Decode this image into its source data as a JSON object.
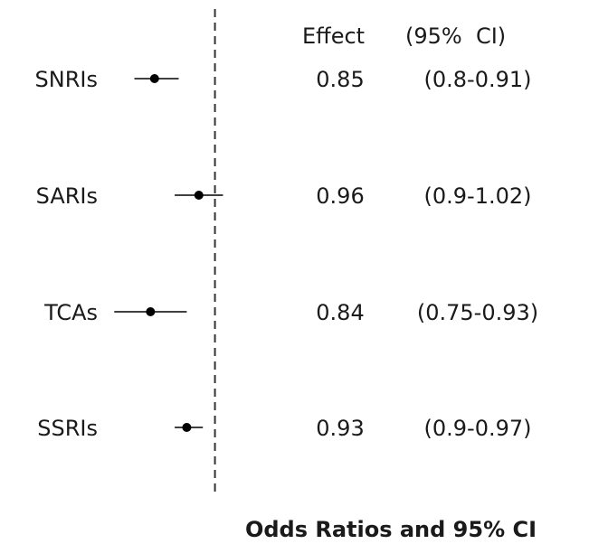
{
  "chart_data": {
    "type": "forest",
    "title": "",
    "xlabel": "Odds Ratios and 95% CI",
    "reference_line": 1.0,
    "xlim": [
      0.5,
      1.12
    ],
    "column_headers": {
      "effect": "Effect",
      "ci": "(95%  CI)"
    },
    "rows": [
      {
        "label": "SNRIs",
        "estimate": 0.85,
        "lower": 0.8,
        "upper": 0.91,
        "effect_text": "0.85",
        "ci_text": "(0.8-0.91)"
      },
      {
        "label": "SARIs",
        "estimate": 0.96,
        "lower": 0.9,
        "upper": 1.02,
        "effect_text": "0.96",
        "ci_text": "(0.9-1.02)"
      },
      {
        "label": "TCAs",
        "estimate": 0.84,
        "lower": 0.75,
        "upper": 0.93,
        "effect_text": "0.84",
        "ci_text": "(0.75-0.93)"
      },
      {
        "label": "SSRIs",
        "estimate": 0.93,
        "lower": 0.9,
        "upper": 0.97,
        "effect_text": "0.93",
        "ci_text": "(0.9-0.97)"
      }
    ],
    "grid": false,
    "legend": "none",
    "colors": {
      "marker": "#000000",
      "text": "#1a1a1a",
      "reference_line": "#333333"
    }
  }
}
